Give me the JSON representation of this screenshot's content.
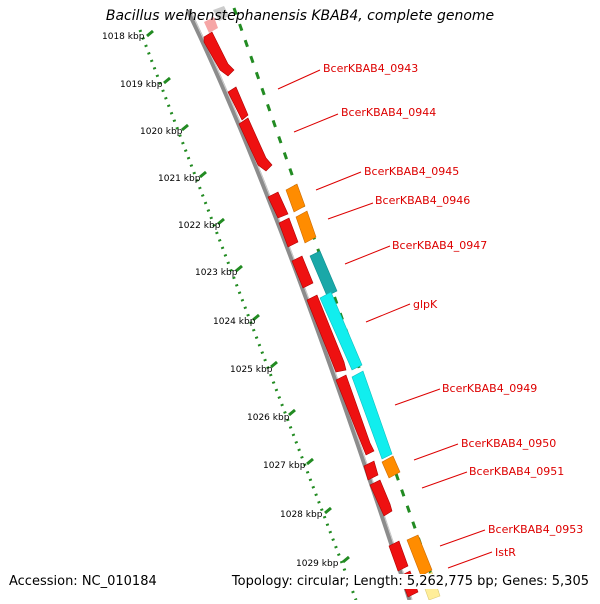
{
  "title": "Bacillus weihenstephanensis KBAB4, complete genome",
  "footer": {
    "accession": "Accession: NC_010184",
    "topology": "Topology: circular; Length: 5,262,775 bp; Genes: 5,305"
  },
  "map": {
    "kbp_labels": [
      "1018 kbp",
      "1019 kbp",
      "1020 kbp",
      "1021 kbp",
      "1022 kbp",
      "1023 kbp",
      "1024 kbp",
      "1025 kbp",
      "1026 kbp",
      "1027 kbp",
      "1028 kbp",
      "1029 kbp"
    ],
    "gene_labels": [
      "BcerKBAB4_0943",
      "BcerKBAB4_0944",
      "BcerKBAB4_0945",
      "BcerKBAB4_0946",
      "BcerKBAB4_0947",
      "glpK",
      "BcerKBAB4_0949",
      "BcerKBAB4_0950",
      "BcerKBAB4_0951",
      "BcerKBAB4_0953",
      "IstR"
    ],
    "colors": {
      "backbone": "#8c8c8c",
      "gene_red": "#ee1111",
      "gene_orange": "#ff8c00",
      "gene_cyan": "#11eeee",
      "gene_pale": "#ffee99",
      "ruler": "#228b22",
      "label": "#dd0000"
    }
  }
}
